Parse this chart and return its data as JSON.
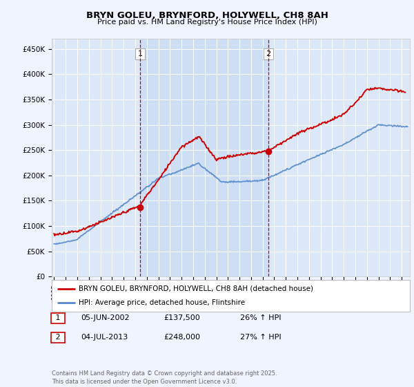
{
  "title_line1": "BRYN GOLEU, BRYNFORD, HOLYWELL, CH8 8AH",
  "title_line2": "Price paid vs. HM Land Registry's House Price Index (HPI)",
  "background_color": "#f0f4ff",
  "plot_bg_color": "#dce8f8",
  "band_color": "#ccddf5",
  "red_color": "#cc0000",
  "blue_color": "#5588cc",
  "annotation1": {
    "num": "1",
    "date": "05-JUN-2002",
    "price": "£137,500",
    "hpi": "26% ↑ HPI"
  },
  "annotation2": {
    "num": "2",
    "date": "04-JUL-2013",
    "price": "£248,000",
    "hpi": "27% ↑ HPI"
  },
  "legend1": "BRYN GOLEU, BRYNFORD, HOLYWELL, CH8 8AH (detached house)",
  "legend2": "HPI: Average price, detached house, Flintshire",
  "footer": "Contains HM Land Registry data © Crown copyright and database right 2025.\nThis data is licensed under the Open Government Licence v3.0.",
  "ylim": [
    0,
    470000
  ],
  "yticks": [
    0,
    50000,
    100000,
    150000,
    200000,
    250000,
    300000,
    350000,
    400000,
    450000
  ],
  "ytick_labels": [
    "£0",
    "£50K",
    "£100K",
    "£150K",
    "£200K",
    "£250K",
    "£300K",
    "£350K",
    "£400K",
    "£450K"
  ],
  "vline1_x": 2002.43,
  "vline2_x": 2013.5,
  "xmin": 1994.8,
  "xmax": 2025.7,
  "sale1_y": 137500,
  "sale2_y": 248000
}
